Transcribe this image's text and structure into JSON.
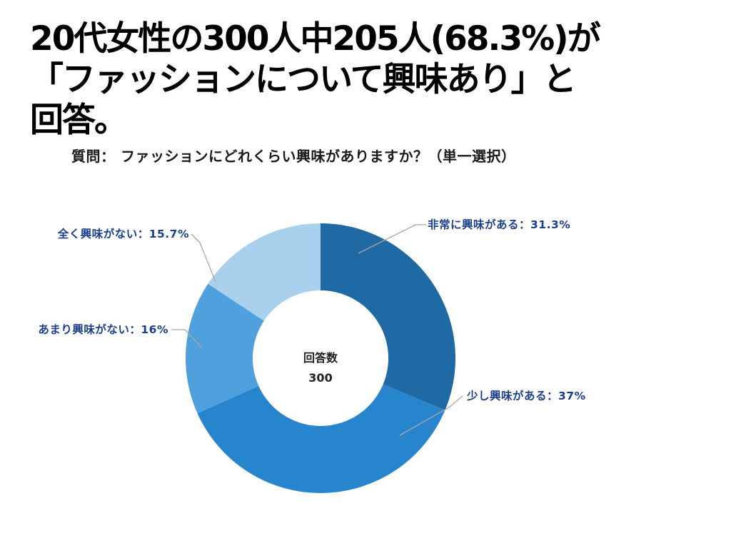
{
  "headline": {
    "line1": "20代女性の300人中205人(68.3%)が",
    "line2": "「ファッションについて興味あり」と",
    "line3": "回答。"
  },
  "question": "質問： ファッションにどれくらい興味がありますか？（単一選択）",
  "chart_data": {
    "type": "pie",
    "subtype": "donut",
    "title": "質問： ファッションにどれくらい興味がありますか？（単一選択）",
    "center_label": "回答数",
    "center_value": "300",
    "unit": "%",
    "categories": [
      "非常に興味がある",
      "少し興味がある",
      "あまり興味がない",
      "全く興味がない"
    ],
    "values": [
      31.3,
      37,
      16,
      15.7
    ],
    "labels": [
      "非常に興味がある：31.3%",
      "少し興味がある：37%",
      "あまり興味がない：16%",
      "全く興味がない：15.7%"
    ],
    "colors": [
      "#1f69a4",
      "#2685cd",
      "#4fa0dd",
      "#a9d1ee"
    ]
  }
}
